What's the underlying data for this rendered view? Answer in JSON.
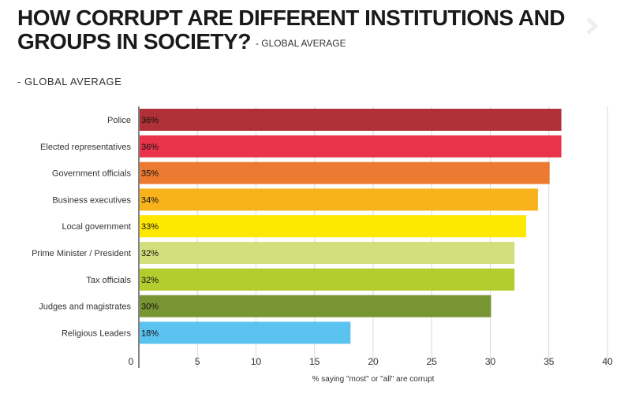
{
  "header": {
    "title": "HOW CORRUPT ARE DIFFERENT INSTITUTIONS AND GROUPS IN SOCIETY?",
    "title_suffix": "- GLOBAL AVERAGE",
    "subtitle": "- GLOBAL AVERAGE"
  },
  "chart_data": {
    "type": "bar",
    "orientation": "horizontal",
    "categories": [
      "Police",
      "Elected representatives",
      "Government officials",
      "Business executives",
      "Local government",
      "Prime Minister / President",
      "Tax officials",
      "Judges and magistrates",
      "Religious Leaders"
    ],
    "values": [
      36,
      36,
      35,
      34,
      33,
      32,
      32,
      30,
      18
    ],
    "value_labels": [
      "36%",
      "36%",
      "35%",
      "34%",
      "33%",
      "32%",
      "32%",
      "30%",
      "18%"
    ],
    "colors": [
      "#b03038",
      "#e8334a",
      "#ec7a30",
      "#f7b21c",
      "#ffe800",
      "#d3df7c",
      "#b3cc2e",
      "#779532",
      "#5bc3f0"
    ],
    "xlabel": "% saying \"most\" or \"all\" are corrupt",
    "ylabel": "",
    "xlim": [
      0,
      40
    ],
    "xticks": [
      0,
      5,
      10,
      15,
      20,
      25,
      30,
      35,
      40
    ],
    "grid": true
  }
}
